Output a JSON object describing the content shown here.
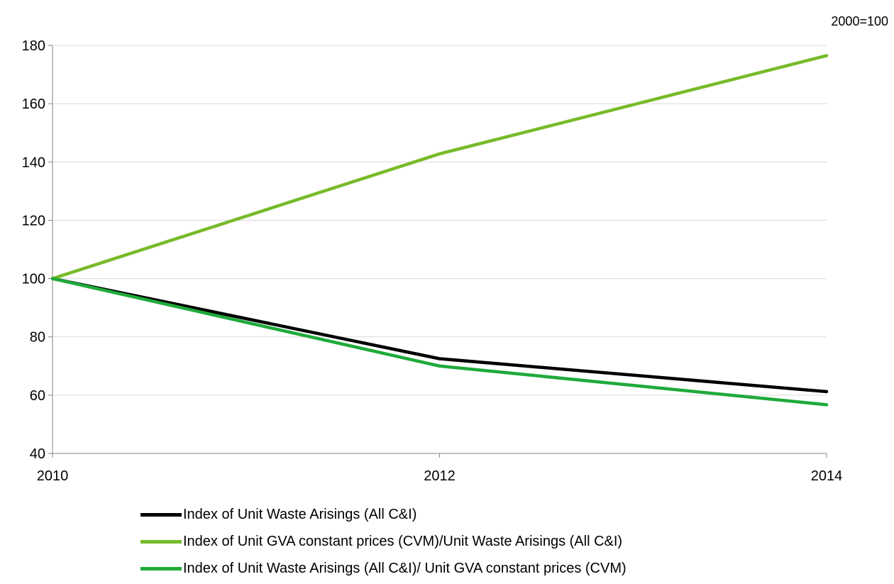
{
  "unit_note": "2000=100",
  "chart_data": {
    "type": "line",
    "title": "",
    "xlabel": "",
    "ylabel": "",
    "x": [
      2010,
      2012,
      2014
    ],
    "xticks": [
      "2010",
      "2012",
      "2014"
    ],
    "yticks": [
      "40",
      "60",
      "80",
      "100",
      "120",
      "140",
      "160",
      "180"
    ],
    "ylim": [
      40,
      180
    ],
    "grid": true,
    "legend_position": "bottom",
    "series": [
      {
        "name": "Index of Unit Waste Arisings (All C&I)",
        "color": "#000000",
        "values": [
          100,
          72.5,
          61.2
        ]
      },
      {
        "name": "Index of Unit GVA constant prices (CVM)/Unit Waste Arisings (All C&I)",
        "color": "#77bb2a",
        "values": [
          100,
          142.8,
          176.5
        ]
      },
      {
        "name": "Index of Unit Waste Arisings (All C&I)/ Unit GVA constant prices (CVM)",
        "color": "#1faa3a",
        "values": [
          100,
          70.0,
          56.7
        ]
      }
    ]
  }
}
